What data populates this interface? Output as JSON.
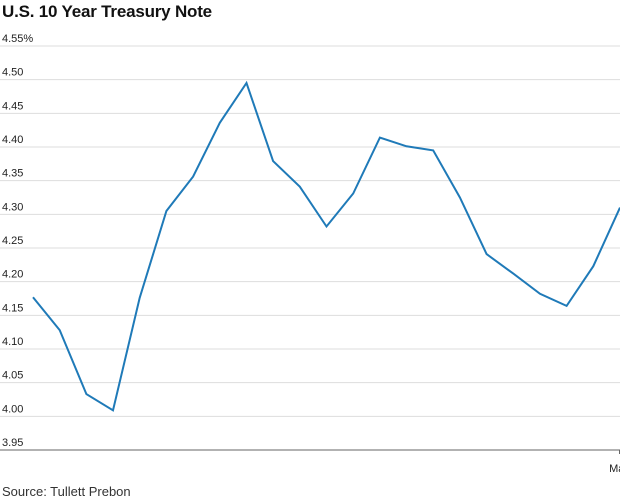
{
  "chart_data": {
    "type": "line",
    "title": "U.S. 10 Year Treasury Note",
    "source": "Source: Tullett Prebon",
    "ylim": [
      3.95,
      4.55
    ],
    "y_ticks": [
      "4.55%",
      "4.50",
      "4.45",
      "4.40",
      "4.35",
      "4.30",
      "4.25",
      "4.20",
      "4.15",
      "4.10",
      "4.05",
      "4.00",
      "3.95"
    ],
    "x_tick_labels": [
      {
        "label": "May",
        "index": 22
      }
    ],
    "grid": true,
    "line_color": "#1f7ab8",
    "series": [
      {
        "values": [
          4.177,
          4.128,
          4.033,
          4.009,
          4.176,
          4.305,
          4.356,
          4.436,
          4.495,
          4.379,
          4.341,
          4.282,
          4.331,
          4.414,
          4.401,
          4.395,
          4.325,
          4.241,
          4.212,
          4.182,
          4.164,
          4.223,
          4.31
        ]
      }
    ]
  }
}
